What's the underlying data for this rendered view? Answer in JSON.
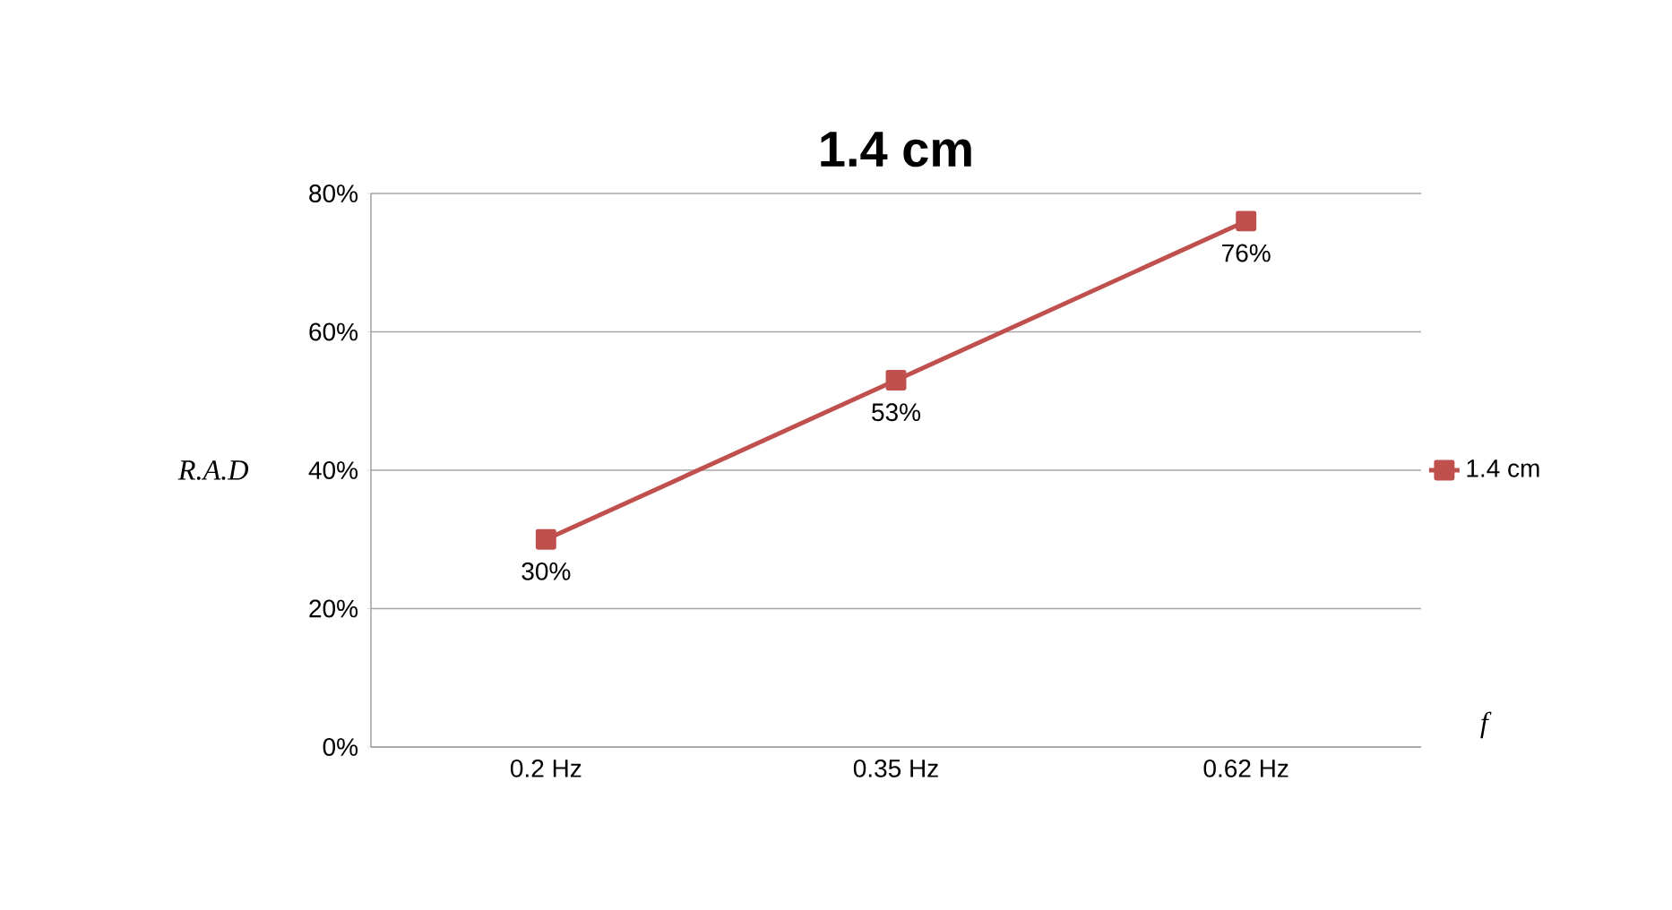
{
  "chart_data": {
    "type": "line",
    "title": "1.4 cm",
    "xlabel": "f",
    "ylabel": "R.A.D",
    "categories": [
      "0.2 Hz",
      "0.35 Hz",
      "0.62 Hz"
    ],
    "series": [
      {
        "name": "1.4 cm",
        "color": "#c0504d",
        "values": [
          30,
          53,
          76
        ],
        "value_labels": [
          "30%",
          "53%",
          "76%"
        ]
      }
    ],
    "ylim": [
      0,
      80
    ],
    "yticks": [
      {
        "value": 0,
        "label": "0%"
      },
      {
        "value": 20,
        "label": "20%"
      },
      {
        "value": 40,
        "label": "40%"
      },
      {
        "value": 60,
        "label": "60%"
      },
      {
        "value": 80,
        "label": "80%"
      }
    ],
    "grid": "y",
    "legend": "right",
    "marker": "square",
    "line_style": "solid"
  }
}
